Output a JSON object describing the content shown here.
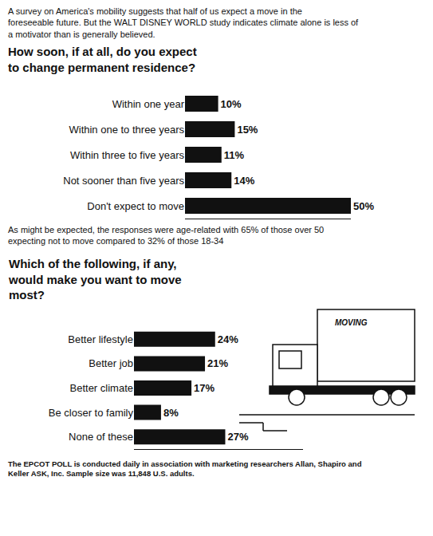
{
  "chart_data": [
    {
      "type": "bar",
      "orientation": "horizontal",
      "title": "How soon, if at all, do you expect to change permanent residence?",
      "annotations": [
        "A survey on America's mobility suggests that half of us expect a move in the foreseeable future. But the WALT DISNEY WORLD study indicates climate alone is less of a motivator than is generally believed."
      ],
      "categories": [
        "Within one year",
        "Within one to three years",
        "Within three to five years",
        "Not sooner than five years",
        "Don't expect to move"
      ],
      "values": [
        10,
        15,
        11,
        14,
        50
      ],
      "value_labels": [
        "10%",
        "15%",
        "11%",
        "14%",
        "50%"
      ],
      "data_labels": true,
      "color": "#111111",
      "xlim": [
        0,
        50
      ],
      "grid": false,
      "tick_labels": "y"
    },
    {
      "type": "bar",
      "orientation": "horizontal",
      "title": "Which of the following, if any, would make you want to move most?",
      "annotations": [
        "As might be expected, the responses were age-related with 65% of those over 50 expecting not to move compared to 32% of those 18-34",
        "The EPCOT POLL is conducted daily in association with marketing researchers Allan, Shapiro and Keller ASK, Inc. Sample size was 11,848 U.S. adults.",
        "MOVING"
      ],
      "categories": [
        "Better lifestyle",
        "Better job",
        "Better climate",
        "Be closer to family",
        "None of these"
      ],
      "values": [
        24,
        21,
        17,
        8,
        27
      ],
      "value_labels": [
        "24%",
        "21%",
        "17%",
        "8%",
        "27%"
      ],
      "data_labels": true,
      "color": "#111111",
      "xlim": [
        0,
        50
      ],
      "grid": false,
      "tick_labels": "y"
    }
  ]
}
